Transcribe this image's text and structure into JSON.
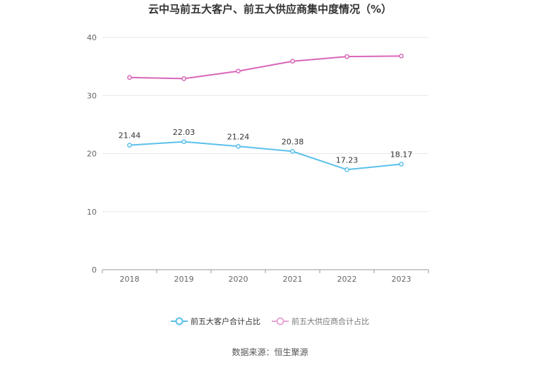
{
  "chart_data": {
    "type": "line",
    "title": "云中马前五大客户、前五大供应商集中度情况（%）",
    "x": [
      "2018",
      "2019",
      "2020",
      "2021",
      "2022",
      "2023"
    ],
    "y_ticks": [
      "0",
      "10",
      "20",
      "30",
      "40"
    ],
    "ylim": [
      0,
      40
    ],
    "grid": true,
    "legend_position": "bottom",
    "series": [
      {
        "name": "前五大客户合计占比",
        "color": "#5bc0eb",
        "values": [
          21.44,
          22.03,
          21.24,
          20.38,
          17.23,
          18.17
        ],
        "labels": [
          "21.44",
          "22.03",
          "21.24",
          "20.38",
          "17.23",
          "18.17"
        ],
        "show_labels": true
      },
      {
        "name": "前五大供应商合计占比",
        "color": "#d966b8",
        "legend_color": "#e8a6d6",
        "values": [
          33.1,
          32.9,
          34.2,
          35.9,
          36.7,
          36.8
        ],
        "show_labels": false
      }
    ],
    "source": "数据来源：恒生聚源"
  }
}
